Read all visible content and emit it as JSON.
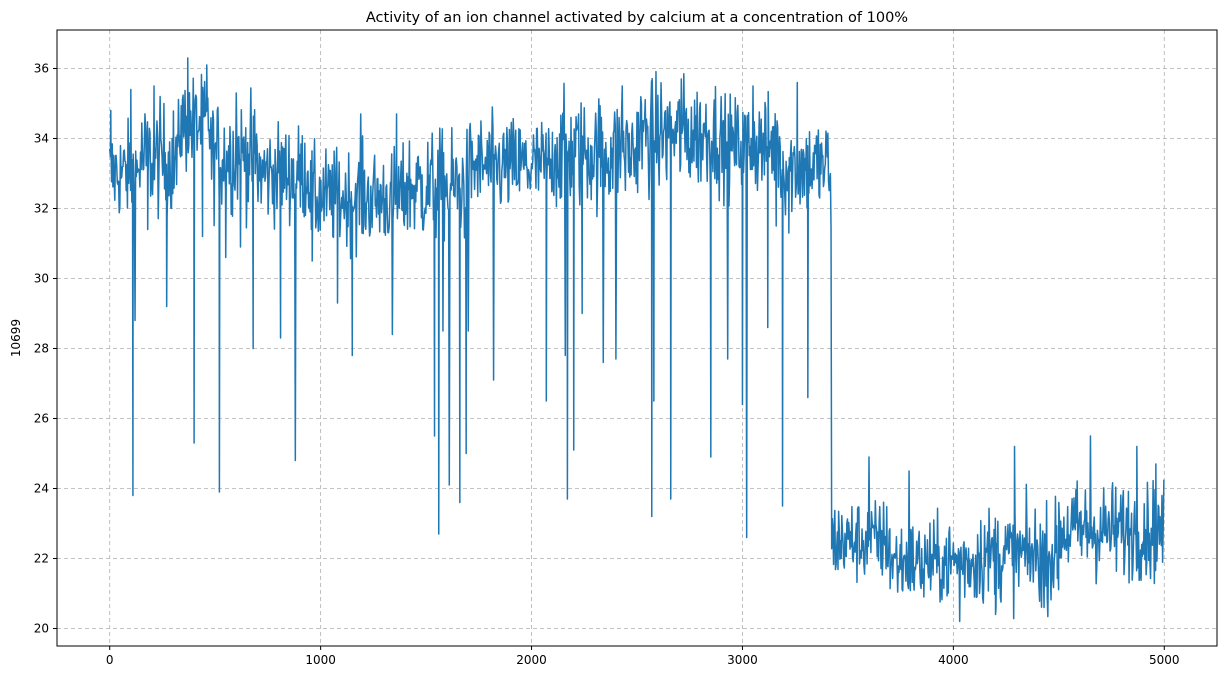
{
  "chart_data": {
    "type": "line",
    "title": "Activity of an ion channel activated by calcium at a concentration of 100%",
    "xlabel": "",
    "ylabel": "10699",
    "xlim": [
      -250,
      5250
    ],
    "ylim": [
      19.5,
      37.1
    ],
    "grid": true,
    "grid_style": "dashed",
    "line_color": "#1f77b4",
    "x_ticks": [
      0,
      1000,
      2000,
      3000,
      4000,
      5000
    ],
    "x_tick_labels": [
      "0",
      "1000",
      "2000",
      "3000",
      "4000",
      "5000"
    ],
    "y_ticks": [
      20,
      22,
      24,
      26,
      28,
      30,
      32,
      34,
      36
    ],
    "y_tick_labels": [
      "20",
      "22",
      "24",
      "26",
      "28",
      "30",
      "32",
      "34",
      "36"
    ],
    "series": [
      {
        "x_start": 0,
        "x_end": 4999,
        "segments": [
          {
            "x_from": 0,
            "x_to": 140,
            "mean": 33.0,
            "noise": 0.7
          },
          {
            "x_from": 140,
            "x_to": 330,
            "mean": 33.4,
            "noise": 0.8
          },
          {
            "x_from": 330,
            "x_to": 480,
            "mean": 34.4,
            "noise": 0.7
          },
          {
            "x_from": 480,
            "x_to": 700,
            "mean": 33.5,
            "noise": 0.8
          },
          {
            "x_from": 700,
            "x_to": 950,
            "mean": 33.0,
            "noise": 0.7
          },
          {
            "x_from": 950,
            "x_to": 1400,
            "mean": 32.3,
            "noise": 0.7
          },
          {
            "x_from": 1400,
            "x_to": 1700,
            "mean": 32.6,
            "noise": 0.8
          },
          {
            "x_from": 1700,
            "x_to": 2100,
            "mean": 33.2,
            "noise": 0.7
          },
          {
            "x_from": 2100,
            "x_to": 2500,
            "mean": 33.6,
            "noise": 0.8
          },
          {
            "x_from": 2500,
            "x_to": 2900,
            "mean": 34.1,
            "noise": 0.8
          },
          {
            "x_from": 2900,
            "x_to": 3180,
            "mean": 33.8,
            "noise": 0.7
          },
          {
            "x_from": 3180,
            "x_to": 3420,
            "mean": 33.2,
            "noise": 0.7
          },
          {
            "x_from": 3420,
            "x_to": 3700,
            "mean": 22.5,
            "noise": 0.6
          },
          {
            "x_from": 3700,
            "x_to": 4100,
            "mean": 21.9,
            "noise": 0.6
          },
          {
            "x_from": 4100,
            "x_to": 4500,
            "mean": 22.1,
            "noise": 0.7
          },
          {
            "x_from": 4500,
            "x_to": 4999,
            "mean": 22.8,
            "noise": 0.7
          }
        ],
        "dips": [
          [
            110,
            23.8
          ],
          [
            120,
            28.8
          ],
          [
            180,
            31.4
          ],
          [
            270,
            29.2
          ],
          [
            400,
            25.3
          ],
          [
            440,
            31.2
          ],
          [
            520,
            23.9
          ],
          [
            550,
            30.6
          ],
          [
            620,
            30.9
          ],
          [
            680,
            28.0
          ],
          [
            810,
            28.3
          ],
          [
            880,
            24.8
          ],
          [
            960,
            30.5
          ],
          [
            1080,
            29.3
          ],
          [
            1150,
            27.8
          ],
          [
            1340,
            28.4
          ],
          [
            1540,
            25.5
          ],
          [
            1560,
            22.7
          ],
          [
            1580,
            28.5
          ],
          [
            1610,
            24.1
          ],
          [
            1660,
            23.6
          ],
          [
            1690,
            25.0
          ],
          [
            1700,
            28.5
          ],
          [
            1820,
            27.1
          ],
          [
            2070,
            26.5
          ],
          [
            2160,
            27.8
          ],
          [
            2170,
            23.7
          ],
          [
            2200,
            25.1
          ],
          [
            2240,
            29.0
          ],
          [
            2340,
            27.6
          ],
          [
            2400,
            27.7
          ],
          [
            2570,
            23.2
          ],
          [
            2580,
            26.5
          ],
          [
            2660,
            23.7
          ],
          [
            2850,
            24.9
          ],
          [
            2930,
            27.7
          ],
          [
            3000,
            26.4
          ],
          [
            3020,
            22.6
          ],
          [
            3120,
            28.6
          ],
          [
            3160,
            31.5
          ],
          [
            3190,
            23.5
          ],
          [
            3220,
            31.3
          ],
          [
            3260,
            23.3
          ],
          [
            3310,
            26.6
          ],
          [
            3420,
            31.4
          ],
          [
            3860,
            20.9
          ],
          [
            4030,
            20.2
          ],
          [
            4100,
            20.9
          ],
          [
            4200,
            20.4
          ],
          [
            4430,
            20.6
          ]
        ],
        "spikes": [
          [
            5,
            34.8
          ],
          [
            100,
            35.4
          ],
          [
            210,
            35.5
          ],
          [
            370,
            36.3
          ],
          [
            460,
            36.1
          ],
          [
            600,
            35.3
          ],
          [
            1190,
            34.7
          ],
          [
            1360,
            34.7
          ],
          [
            2430,
            35.5
          ],
          [
            2710,
            35.7
          ],
          [
            3050,
            35.5
          ],
          [
            3260,
            35.6
          ],
          [
            3600,
            24.9
          ],
          [
            3790,
            24.5
          ],
          [
            4290,
            25.2
          ],
          [
            4650,
            25.5
          ],
          [
            4870,
            25.2
          ],
          [
            4960,
            24.7
          ]
        ]
      }
    ]
  }
}
